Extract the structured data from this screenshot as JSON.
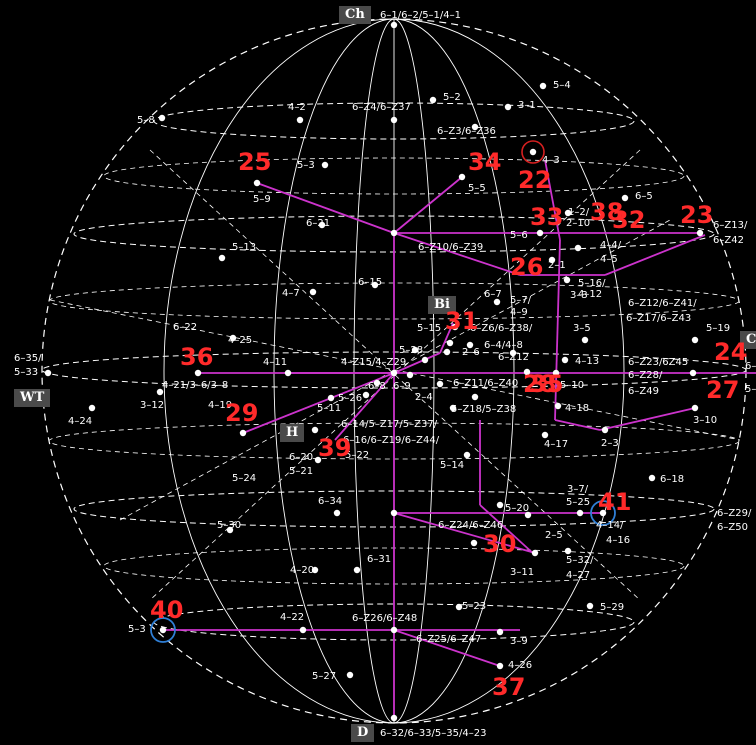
{
  "colors": {
    "background": "#000000",
    "grid": "#ffffff",
    "path": "#cc33cc",
    "path_node": "#ee88ee",
    "route_number": "#ff2222",
    "circle_red": "#d62020",
    "circle_blue": "#2f7fd6"
  },
  "axis_boxes": {
    "ch": "Ch",
    "d": "D",
    "wt": "WT",
    "bi": "Bi",
    "h": "H",
    "right": "C"
  },
  "nodes": [
    {
      "id": "n1",
      "label": "6–1/6–2/5–1/4–1"
    },
    {
      "id": "n2",
      "label": "5–4"
    },
    {
      "id": "n3",
      "label": "5–8"
    },
    {
      "id": "n4",
      "label": "4–2"
    },
    {
      "id": "n5",
      "label": "5–2"
    },
    {
      "id": "n6",
      "label": "6–Z4/6–Z37"
    },
    {
      "id": "n7",
      "label": "3–1"
    },
    {
      "id": "n8",
      "label": "6–Z3/6–Z36"
    },
    {
      "id": "n9",
      "label": "4–3"
    },
    {
      "id": "n10",
      "label": "5–3"
    },
    {
      "id": "n11",
      "label": "5–5"
    },
    {
      "id": "n12",
      "label": "5–9"
    },
    {
      "id": "n13",
      "label": "6–5"
    },
    {
      "id": "n14",
      "label": "1–2/"
    },
    {
      "id": "n15",
      "label": "2–10"
    },
    {
      "id": "n16",
      "label": "6–Z13/"
    },
    {
      "id": "n17",
      "label": "6–Z42"
    },
    {
      "id": "n18",
      "label": "6–21"
    },
    {
      "id": "n19",
      "label": "5–6"
    },
    {
      "id": "n20",
      "label": "4–4/"
    },
    {
      "id": "n21",
      "label": "4–5"
    },
    {
      "id": "n22",
      "label": "6–Z10/6–Z39"
    },
    {
      "id": "n23",
      "label": "5–13"
    },
    {
      "id": "n24",
      "label": "2–1"
    },
    {
      "id": "n25",
      "label": "5–16/"
    },
    {
      "id": "n26",
      "label": "4–12"
    },
    {
      "id": "n27",
      "label": "3–3"
    },
    {
      "id": "n28",
      "label": "6–15"
    },
    {
      "id": "n29",
      "label": "4–7"
    },
    {
      "id": "n30",
      "label": "6–7"
    },
    {
      "id": "n31",
      "label": "5–7/"
    },
    {
      "id": "n32",
      "label": "4–9"
    },
    {
      "id": "n33",
      "label": "6–Z12/6–Z41/"
    },
    {
      "id": "n34",
      "label": "6–Z17/6–Z43"
    },
    {
      "id": "n35",
      "label": "6–22"
    },
    {
      "id": "n36",
      "label": "4–25"
    },
    {
      "id": "n37",
      "label": "5–15"
    },
    {
      "id": "n38",
      "label": "6–Z6/6–Z38/"
    },
    {
      "id": "n39",
      "label": "3–5"
    },
    {
      "id": "n40",
      "label": "5–19"
    },
    {
      "id": "n41",
      "label": "6–35/"
    },
    {
      "id": "n42",
      "label": "5–33"
    },
    {
      "id": "n43",
      "label": "5–28"
    },
    {
      "id": "n44",
      "label": "2–6"
    },
    {
      "id": "n45",
      "label": "6–4/4–8"
    },
    {
      "id": "n46",
      "label": "4–11"
    },
    {
      "id": "n47",
      "label": "4–Z15/4–Z29"
    },
    {
      "id": "n48",
      "label": "6–Z12"
    },
    {
      "id": "n49",
      "label": "4–13"
    },
    {
      "id": "n50",
      "label": "6–Z23/6Z45"
    },
    {
      "id": "n51",
      "label": "6–"
    },
    {
      "id": "n52",
      "label": "4–21/3–6/3–8"
    },
    {
      "id": "n53",
      "label": "6–8"
    },
    {
      "id": "n54",
      "label": "6–9"
    },
    {
      "id": "n55",
      "label": "6–Z11/6–Z40"
    },
    {
      "id": "n56",
      "label": "5–10"
    },
    {
      "id": "n57",
      "label": "6–Z28/"
    },
    {
      "id": "n58",
      "label": "6–Z49"
    },
    {
      "id": "n59",
      "label": "5–"
    },
    {
      "id": "n60",
      "label": "2–4"
    },
    {
      "id": "n61",
      "label": "5–26"
    },
    {
      "id": "n62",
      "label": "4–24"
    },
    {
      "id": "n63",
      "label": "3–12"
    },
    {
      "id": "n64",
      "label": "5–11"
    },
    {
      "id": "n65",
      "label": "5–Z18/5–Z38"
    },
    {
      "id": "n66",
      "label": "4–18"
    },
    {
      "id": "n67",
      "label": "3–10"
    },
    {
      "id": "n68",
      "label": "4–19"
    },
    {
      "id": "n69",
      "label": "6–14/5–Z17/5–Z37/"
    },
    {
      "id": "n70",
      "label": "6–16/6–Z19/6–Z44/"
    },
    {
      "id": "n71",
      "label": "4–17"
    },
    {
      "id": "n72",
      "label": "2–3"
    },
    {
      "id": "n73",
      "label": "6–20"
    },
    {
      "id": "n74",
      "label": "5–22"
    },
    {
      "id": "n75",
      "label": "5–21"
    },
    {
      "id": "n76",
      "label": "5–14"
    },
    {
      "id": "n77",
      "label": "5–24"
    },
    {
      "id": "n78",
      "label": "6–18"
    },
    {
      "id": "n79",
      "label": "3–7/"
    },
    {
      "id": "n80",
      "label": "5–25"
    },
    {
      "id": "n81",
      "label": "6–34"
    },
    {
      "id": "n82",
      "label": "5–20"
    },
    {
      "id": "n83",
      "label": "6–Z29/"
    },
    {
      "id": "n84",
      "label": "6–Z50"
    },
    {
      "id": "n85",
      "label": "5–30"
    },
    {
      "id": "n86",
      "label": "6–Z24/6–Z46"
    },
    {
      "id": "n87",
      "label": "4–14/"
    },
    {
      "id": "n88",
      "label": "4–16"
    },
    {
      "id": "n89",
      "label": "2–5"
    },
    {
      "id": "n90",
      "label": "5–32/"
    },
    {
      "id": "n91",
      "label": "4–27"
    },
    {
      "id": "n92",
      "label": "6–31"
    },
    {
      "id": "n93",
      "label": "3–11"
    },
    {
      "id": "n94",
      "label": "4–20"
    },
    {
      "id": "n95",
      "label": "5–29"
    },
    {
      "id": "n96",
      "label": "4–22"
    },
    {
      "id": "n97",
      "label": "5–23"
    },
    {
      "id": "n98",
      "label": "6–Z26/6–Z48"
    },
    {
      "id": "n99",
      "label": "5–3"
    },
    {
      "id": "n100",
      "label": "6–Z25/6–Z47"
    },
    {
      "id": "n101",
      "label": "3–9"
    },
    {
      "id": "n102",
      "label": "4–26"
    },
    {
      "id": "n103",
      "label": "5–27"
    },
    {
      "id": "n104",
      "label": "6–32/6–33/5–35/4–23"
    }
  ],
  "route_numbers": [
    {
      "id": "r25",
      "label": "25"
    },
    {
      "id": "r34",
      "label": "34"
    },
    {
      "id": "r22",
      "label": "22"
    },
    {
      "id": "r33",
      "label": "33"
    },
    {
      "id": "r38",
      "label": "38"
    },
    {
      "id": "r32",
      "label": "32"
    },
    {
      "id": "r23",
      "label": "23"
    },
    {
      "id": "r26",
      "label": "26"
    },
    {
      "id": "r31",
      "label": "31"
    },
    {
      "id": "r36",
      "label": "36"
    },
    {
      "id": "r24",
      "label": "24"
    },
    {
      "id": "r28",
      "label": "28"
    },
    {
      "id": "r35",
      "label": "35"
    },
    {
      "id": "r27",
      "label": "27"
    },
    {
      "id": "r29",
      "label": "29"
    },
    {
      "id": "r39",
      "label": "39"
    },
    {
      "id": "r41",
      "label": "41"
    },
    {
      "id": "r30",
      "label": "30"
    },
    {
      "id": "r40",
      "label": "40"
    },
    {
      "id": "r37",
      "label": "37"
    }
  ]
}
